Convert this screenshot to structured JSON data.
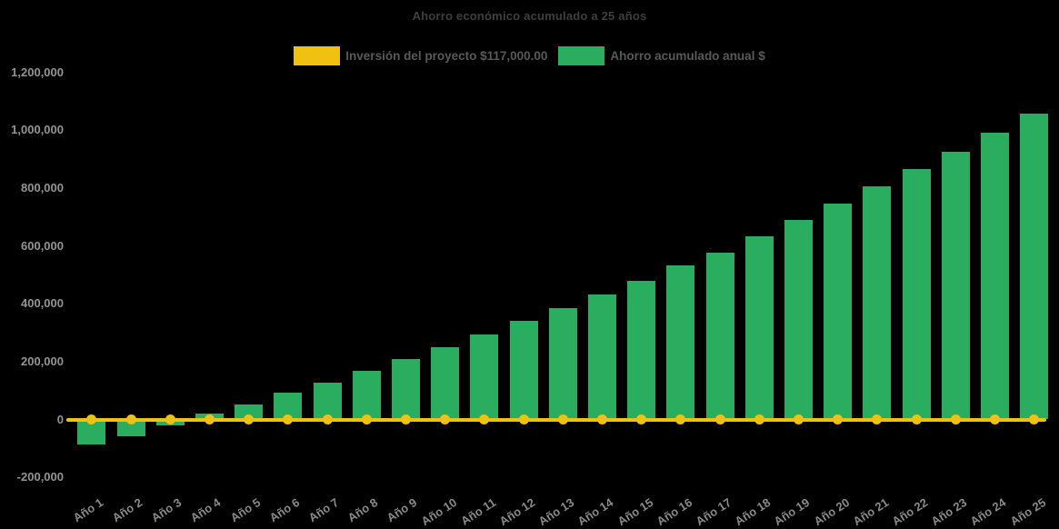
{
  "chart_data": {
    "type": "bar",
    "title": "Ahorro económico acumulado a 25 años",
    "categories": [
      "Año 1",
      "Año 2",
      "Año 3",
      "Año 4",
      "Año 5",
      "Año 6",
      "Año 7",
      "Año 8",
      "Año 9",
      "Año 10",
      "Año 11",
      "Año 12",
      "Año 13",
      "Año 14",
      "Año 15",
      "Año 16",
      "Año 17",
      "Año 18",
      "Año 19",
      "Año 20",
      "Año 21",
      "Año 22",
      "Año 23",
      "Año 24",
      "Año 25"
    ],
    "series": [
      {
        "name": "Inversión del proyecto $117,000.00",
        "type": "line",
        "color": "#efc111",
        "investment_amount_shown_in_label": "$117,000.00",
        "values": [
          0,
          0,
          0,
          0,
          0,
          0,
          0,
          0,
          0,
          0,
          0,
          0,
          0,
          0,
          0,
          0,
          0,
          0,
          0,
          0,
          0,
          0,
          0,
          0,
          0
        ]
      },
      {
        "name": "Ahorro acumulado anual $",
        "type": "bar",
        "color": "#2aad5e",
        "values": [
          -85000,
          -57000,
          -20000,
          20000,
          51000,
          92000,
          127000,
          168000,
          208000,
          250000,
          293000,
          342000,
          384000,
          433000,
          480000,
          531000,
          578000,
          632000,
          690000,
          747000,
          805000,
          865000,
          925000,
          990000,
          1058000
        ]
      }
    ],
    "xlabel": "",
    "ylabel": "",
    "ylim": [
      -200000,
      1200000
    ],
    "yticks": [
      {
        "value": -200000,
        "label": "-200,000"
      },
      {
        "value": 0,
        "label": "0"
      },
      {
        "value": 200000,
        "label": "200,000"
      },
      {
        "value": 400000,
        "label": "400,000"
      },
      {
        "value": 600000,
        "label": "600,000"
      },
      {
        "value": 800000,
        "label": "800,000"
      },
      {
        "value": 1000000,
        "label": "1,000,000"
      },
      {
        "value": 1200000,
        "label": "1,200,000"
      }
    ],
    "legend_position": "top",
    "grid": false,
    "background_color": "#000000",
    "x_tick_rotation_deg": 33
  }
}
